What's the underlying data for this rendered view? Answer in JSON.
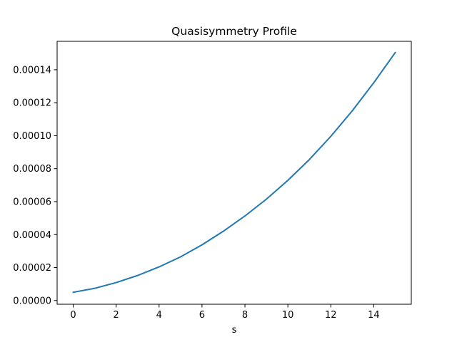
{
  "chart_data": {
    "type": "line",
    "title": "Quasisymmetry Profile",
    "xlabel": "s",
    "ylabel": "",
    "xlim": [
      0,
      15
    ],
    "ylim": [
      0,
      0.00015
    ],
    "xticks": [
      0,
      2,
      4,
      6,
      8,
      10,
      12,
      14
    ],
    "xtick_labels": [
      "0",
      "2",
      "4",
      "6",
      "8",
      "10",
      "12",
      "14"
    ],
    "yticks": [
      0,
      2e-05,
      4e-05,
      6e-05,
      8e-05,
      0.0001,
      0.00012,
      0.00014
    ],
    "ytick_labels": [
      "0.00000",
      "0.00002",
      "0.00004",
      "0.00006",
      "0.00008",
      "0.00010",
      "0.00012",
      "0.00014"
    ],
    "grid": false,
    "series": [
      {
        "color": "#1f77b4",
        "x": [
          0,
          1,
          2,
          3,
          4,
          5,
          6,
          7,
          8,
          9,
          10,
          11,
          12,
          13,
          14,
          15
        ],
        "y": [
          5e-06,
          7.4e-06,
          1.09e-05,
          1.52e-05,
          2.04e-05,
          2.65e-05,
          3.38e-05,
          4.21e-05,
          5.13e-05,
          6.15e-05,
          7.29e-05,
          8.55e-05,
          9.96e-05,
          0.0001151,
          0.0001321,
          0.0001504
        ]
      }
    ]
  }
}
